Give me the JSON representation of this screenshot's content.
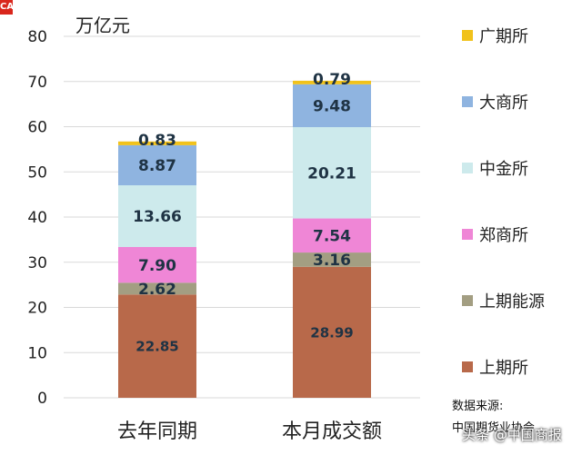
{
  "chart_data": {
    "type": "bar",
    "stacked": true,
    "unit_label": "万亿元",
    "categories": [
      "去年同期",
      "本月成交额"
    ],
    "series": [
      {
        "name": "上期所",
        "color": "#b8694a",
        "values": [
          22.85,
          28.99
        ],
        "labels": [
          "22.85",
          "28.99"
        ]
      },
      {
        "name": "上期能源",
        "color": "#a39e82",
        "values": [
          2.62,
          3.16
        ],
        "labels": [
          "2.62",
          "3.16"
        ]
      },
      {
        "name": "郑商所",
        "color": "#ef86d6",
        "values": [
          7.9,
          7.54
        ],
        "labels": [
          "7.90",
          "7.54"
        ]
      },
      {
        "name": "中金所",
        "color": "#cdeaec",
        "values": [
          13.66,
          20.21
        ],
        "labels": [
          "13.66",
          "20.21"
        ]
      },
      {
        "name": "大商所",
        "color": "#8fb4e0",
        "values": [
          8.87,
          9.48
        ],
        "labels": [
          "8.87",
          "9.48"
        ]
      },
      {
        "name": "广期所",
        "color": "#f1c21b",
        "values": [
          0.83,
          0.79
        ],
        "labels": [
          "0.83",
          "0.79"
        ]
      }
    ],
    "ylim": [
      0,
      80
    ],
    "yticks": [
      "0",
      "10",
      "20",
      "30",
      "40",
      "50",
      "60",
      "70",
      "80"
    ],
    "grid": true,
    "legend_position": "right"
  },
  "source": {
    "line1": "数据来源:",
    "line2": "中国期货业协会"
  },
  "watermark": "头条 @中国商报",
  "logo_text": "CA"
}
